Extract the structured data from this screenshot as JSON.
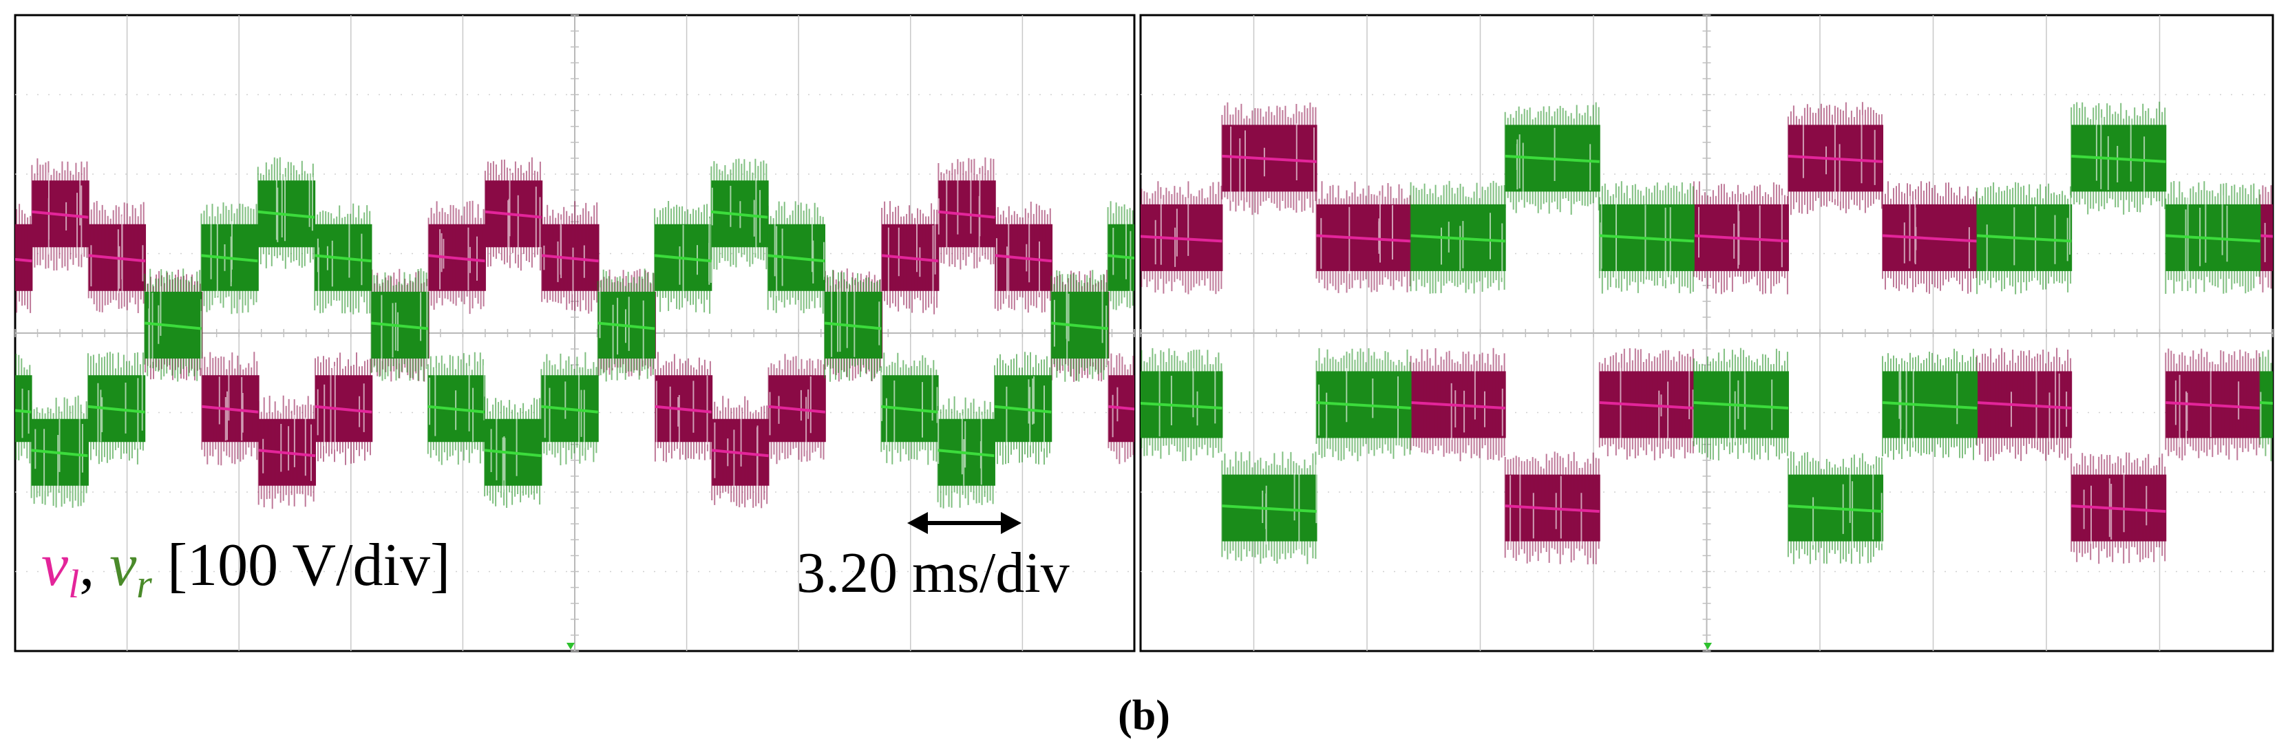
{
  "figure": {
    "caption": "(b)"
  },
  "colors": {
    "vl": "#8a0a45",
    "vl_trace": "#e3259a",
    "vl_label": "#e3259a",
    "vr": "#1a8c1a",
    "vr_trace": "#3cdc3c",
    "vr_label": "#4a8a2a",
    "marker": "#2ec12e"
  },
  "chart_data": [
    {
      "type": "line",
      "title": "",
      "series": [
        {
          "name": "v_l",
          "color_key": "vl",
          "period_div": 4.05,
          "phase_div": 0.15,
          "levels_div": [
            1.5,
            0.95,
            0.1,
            -0.95,
            -1.5,
            -0.95,
            0.1,
            0.95
          ]
        },
        {
          "name": "v_r",
          "color_key": "vr",
          "period_div": 4.05,
          "phase_div": 2.17,
          "levels_div": [
            1.5,
            0.95,
            0.1,
            -0.95,
            -1.5,
            -0.95,
            0.1,
            0.95
          ]
        }
      ],
      "xlim": [
        0,
        10
      ],
      "ylim": [
        -4,
        4
      ],
      "grid": true,
      "annotations": {
        "signal_label": {
          "vl_main": "v",
          "vl_sub": "l",
          "separator": ", ",
          "vr_main": "v",
          "vr_sub": "r",
          "unit": "[100 V/div]"
        },
        "time_scale": "3.20 ms/div"
      }
    },
    {
      "type": "line",
      "title": "",
      "series": [
        {
          "name": "v_l",
          "color_key": "vl",
          "period_div": 5.0,
          "phase_div": 0.72,
          "levels_div": [
            2.2,
            1.2,
            -0.9,
            -2.2,
            -0.9,
            1.2
          ]
        },
        {
          "name": "v_r",
          "color_key": "vr",
          "period_div": 5.0,
          "phase_div": 3.22,
          "levels_div": [
            2.2,
            1.2,
            -0.9,
            -2.2,
            -0.9,
            1.2
          ]
        }
      ],
      "xlim": [
        0,
        10
      ],
      "ylim": [
        -4,
        4
      ],
      "grid": true
    }
  ]
}
